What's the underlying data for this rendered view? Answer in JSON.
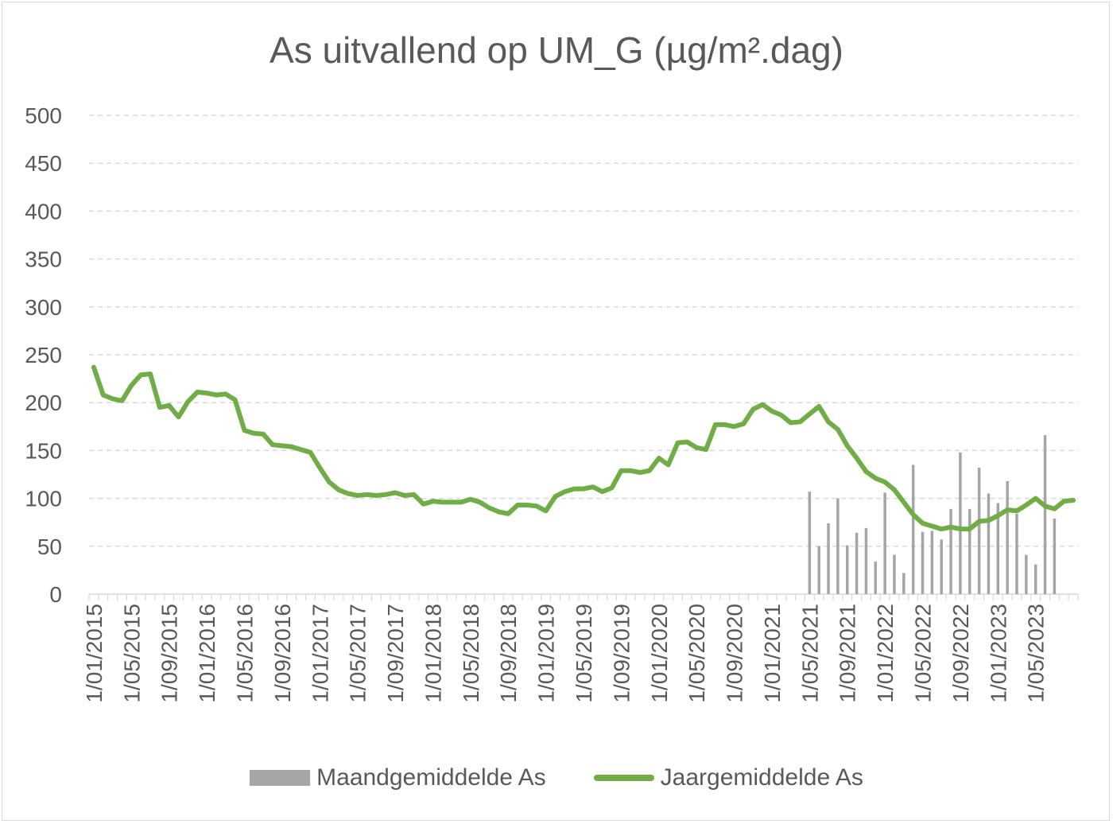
{
  "chart_data": {
    "type": "bar+line",
    "title": "As uitvallend op UM_G (µg/m².dag)",
    "xlabel": "",
    "ylabel": "",
    "ylim": [
      0,
      500
    ],
    "yticks": [
      "0",
      "50",
      "100",
      "150",
      "200",
      "250",
      "300",
      "350",
      "400",
      "450",
      "500"
    ],
    "grid": "horizontal dashed",
    "legend_position": "bottom",
    "x_start": "1/01/2015",
    "x_tick_labels": [
      "1/01/2015",
      "1/05/2015",
      "1/09/2015",
      "1/01/2016",
      "1/05/2016",
      "1/09/2016",
      "1/01/2017",
      "1/05/2017",
      "1/09/2017",
      "1/01/2018",
      "1/05/2018",
      "1/09/2018",
      "1/01/2019",
      "1/05/2019",
      "1/09/2019",
      "1/01/2020",
      "1/05/2020",
      "1/09/2020",
      "1/01/2021",
      "1/05/2021",
      "1/09/2021",
      "1/01/2022",
      "1/05/2022",
      "1/09/2022",
      "1/01/2023",
      "1/05/2023"
    ],
    "series": [
      {
        "name": "Maandgemiddelde As",
        "type": "bar",
        "color": "#a5a5a5",
        "start": "1/05/2021",
        "values": [
          107,
          50,
          74,
          100,
          51,
          64,
          69,
          34,
          106,
          41,
          22,
          135,
          65,
          66,
          57,
          89,
          148,
          89,
          132,
          105,
          95,
          118,
          84,
          41,
          31,
          166,
          79
        ]
      },
      {
        "name": "Jaargemiddelde As",
        "type": "line",
        "color": "#70ad47",
        "start": "1/01/2015",
        "values": [
          237,
          208,
          204,
          202,
          218,
          229,
          230,
          195,
          197,
          185,
          201,
          211,
          210,
          208,
          209,
          203,
          171,
          168,
          167,
          156,
          155,
          154,
          151,
          148,
          132,
          117,
          109,
          105,
          103,
          104,
          103,
          104,
          106,
          103,
          104,
          94,
          97,
          96,
          96,
          96,
          99,
          96,
          90,
          86,
          84,
          93,
          93,
          92,
          87,
          102,
          107,
          110,
          110,
          112,
          107,
          111,
          129,
          129,
          127,
          129,
          142,
          135,
          158,
          159,
          153,
          151,
          177,
          177,
          175,
          178,
          193,
          198,
          191,
          187,
          179,
          180,
          188,
          196,
          180,
          172,
          155,
          142,
          128,
          121,
          117,
          109,
          96,
          83,
          74,
          71,
          68,
          70,
          68,
          68,
          76,
          77,
          82,
          88,
          87,
          93,
          100,
          92,
          89,
          97,
          98
        ]
      }
    ]
  }
}
